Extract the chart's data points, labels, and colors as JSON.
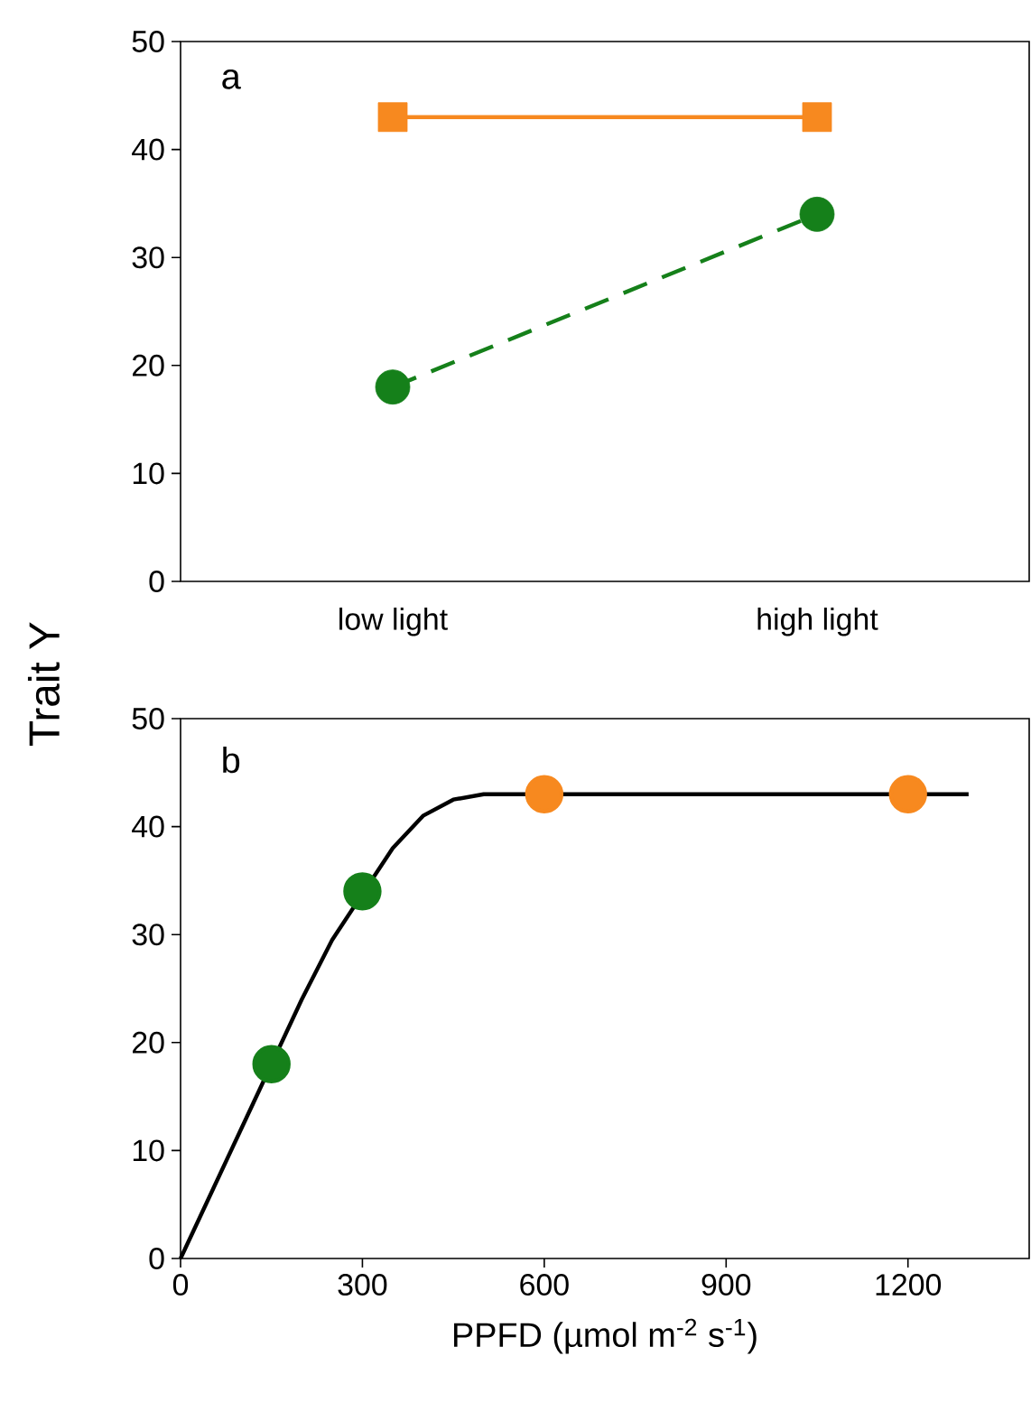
{
  "chart_data": [
    {
      "type": "line",
      "ylabel": "Trait Y",
      "annotations": [
        "a"
      ],
      "categories": [
        "low light",
        "high light"
      ],
      "ylim": [
        0,
        50
      ],
      "yticks": [
        0,
        10,
        20,
        30,
        40,
        50
      ],
      "grid": false,
      "series": [
        {
          "color": "#f7891f",
          "marker": "square",
          "line_style": "solid",
          "values": [
            43,
            43
          ]
        },
        {
          "color": "#15801a",
          "marker": "circle",
          "line_style": "dashed",
          "values": [
            18,
            34
          ]
        }
      ]
    },
    {
      "type": "scatter",
      "xlabel": "PPFD (µmol m$^{-2}$ s$^{-1}$)",
      "annotations": [
        "b"
      ],
      "xlim": [
        0,
        1400
      ],
      "xticks": [
        0,
        300,
        600,
        900,
        1200
      ],
      "ylim": [
        0,
        50
      ],
      "yticks": [
        0,
        10,
        20,
        30,
        40,
        50
      ],
      "grid": false,
      "series": [
        {
          "type": "line",
          "color": "#000000",
          "marker": "none",
          "line_style": "solid",
          "x": [
            0,
            50,
            100,
            200,
            250,
            350,
            400,
            450,
            500,
            550,
            800,
            1000,
            1300
          ],
          "values": [
            0,
            6,
            12,
            24,
            29.5,
            38,
            41,
            42.5,
            43,
            43,
            43,
            43,
            43
          ]
        },
        {
          "color": "#15801a",
          "marker": "circle",
          "x": [
            150,
            300
          ],
          "values": [
            18,
            34
          ]
        },
        {
          "color": "#f7891f",
          "marker": "circle",
          "x": [
            600,
            1200
          ],
          "values": [
            43,
            43
          ]
        }
      ]
    }
  ]
}
